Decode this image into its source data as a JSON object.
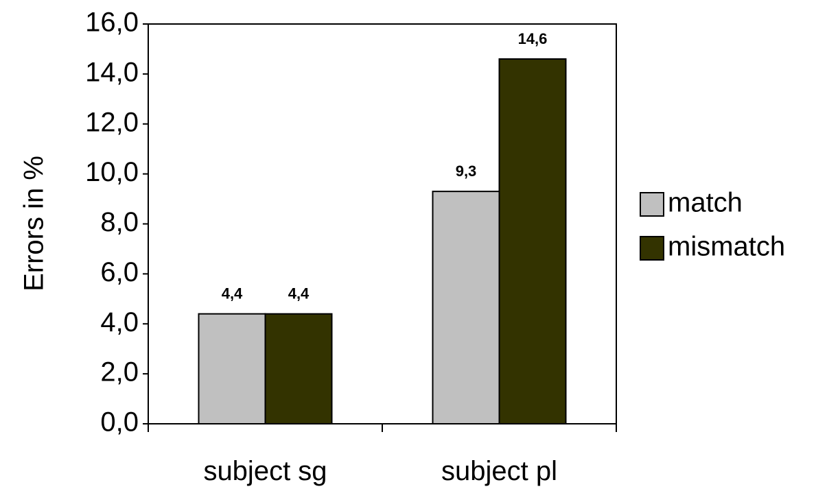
{
  "chart_data": {
    "type": "bar",
    "title": "",
    "xlabel": "",
    "ylabel": "Errors in %",
    "ylim": [
      0,
      16
    ],
    "yticks": [
      0,
      2,
      4,
      6,
      8,
      10,
      12,
      14,
      16
    ],
    "ytick_labels": [
      "0,0",
      "2,0",
      "4,0",
      "6,0",
      "8,0",
      "10,0",
      "12,0",
      "14,0",
      "16,0"
    ],
    "categories": [
      "subject sg",
      "subject pl"
    ],
    "series": [
      {
        "name": "match",
        "color": "#c0c0c0",
        "values": [
          4.4,
          9.3
        ],
        "value_labels": [
          "4,4",
          "9,3"
        ]
      },
      {
        "name": "mismatch",
        "color": "#333300",
        "values": [
          4.4,
          14.6
        ],
        "value_labels": [
          "4,4",
          "14,6"
        ]
      }
    ],
    "grid": false,
    "legend_position": "right"
  }
}
